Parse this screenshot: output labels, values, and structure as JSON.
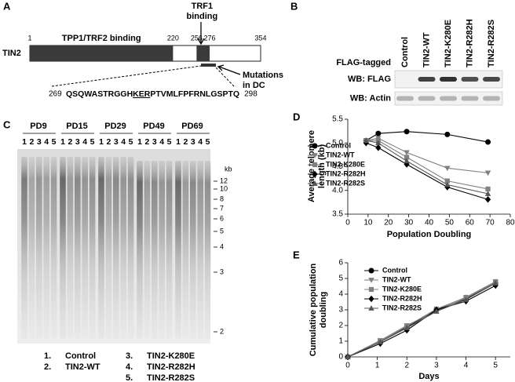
{
  "panel_labels": [
    "A",
    "B",
    "C",
    "D",
    "E"
  ],
  "diagram": {
    "protein": "TIN2",
    "positions": [
      1,
      220,
      256,
      276,
      354
    ],
    "tpp1_label": "TPP1/TRF2 binding",
    "trf1_label": [
      "TRF1",
      "binding"
    ],
    "mutation_label": [
      "Mutations",
      "in DC"
    ],
    "sequence": {
      "start": 269,
      "parts": [
        "QSQWASTRGGH",
        "KER",
        "PTVMLFPFRNLGSPTQ"
      ],
      "end": 298
    }
  },
  "blot": {
    "lanes": [
      "Control",
      "TIN2-WT",
      "TIN2-K280E",
      "TIN2-R282H",
      "TIN2-R282S"
    ],
    "tag_label": "FLAG-tagged",
    "rows": [
      "WB: FLAG",
      "WB: Actin"
    ]
  },
  "gel": {
    "groups": [
      "PD9",
      "PD15",
      "PD29",
      "PD49",
      "PD69"
    ],
    "lane_numbers": [
      1,
      2,
      3,
      4,
      5
    ],
    "size_unit": "kb",
    "size_markers": [
      12,
      10,
      8,
      7,
      6,
      5,
      4,
      3,
      2
    ],
    "key": [
      {
        "number": "1.",
        "label": "Control"
      },
      {
        "number": "2.",
        "label": "TIN2-WT"
      },
      {
        "number": "3.",
        "label": "TIN2-K280E"
      },
      {
        "number": "4.",
        "label": "TIN2-R282H"
      },
      {
        "number": "5.",
        "label": "TIN2-R282S"
      }
    ]
  },
  "chart_data": [
    {
      "type": "line",
      "xlabel": "Population Doubling",
      "ylabel": [
        "Average telomere",
        "length (kb)"
      ],
      "x": [
        9,
        15,
        29,
        49,
        69
      ],
      "xlim": [
        0,
        80
      ],
      "xticks": [
        0,
        10,
        20,
        30,
        40,
        50,
        60,
        70,
        80
      ],
      "ylim": [
        3.5,
        5.5
      ],
      "yticks": [
        3.5,
        {
          "value": 4,
          "label": "4.0"
        },
        4.5,
        {
          "value": 5,
          "label": "5.0"
        },
        5.5
      ],
      "series": [
        {
          "name": "Control",
          "color": "#000000",
          "marker": "circle",
          "values": [
            5.05,
            5.2,
            5.24,
            5.18,
            5.02
          ]
        },
        {
          "name": "TIN2-WT",
          "color": "#7f7f7f",
          "marker": "triangle-down",
          "values": [
            5.05,
            5.1,
            4.8,
            4.47,
            4.37
          ]
        },
        {
          "name": "TIN2-K280E",
          "color": "#808080",
          "marker": "square",
          "values": [
            5.05,
            5.05,
            4.7,
            4.2,
            4.03
          ]
        },
        {
          "name": "TIN2-R282H",
          "color": "#000000",
          "marker": "diamond",
          "values": [
            5.0,
            4.9,
            4.55,
            4.07,
            3.81
          ]
        },
        {
          "name": "TIN2-R282S",
          "color": "#555555",
          "marker": "triangle",
          "values": [
            5.05,
            5.0,
            4.62,
            4.12,
            3.93
          ]
        }
      ]
    },
    {
      "type": "line",
      "xlabel": "Days",
      "ylabel": [
        "Cumulative population",
        "doubling"
      ],
      "x": [
        0,
        1.1,
        2,
        3,
        4,
        5
      ],
      "xlim": [
        0,
        5.5
      ],
      "xticks": [
        0,
        1,
        2,
        3,
        4,
        5
      ],
      "ylim": [
        0,
        6
      ],
      "yticks": [
        0,
        1,
        2,
        3,
        4,
        5,
        6
      ],
      "series": [
        {
          "name": "Control",
          "color": "#000000",
          "marker": "circle",
          "values": [
            0,
            1.0,
            1.9,
            3.0,
            3.7,
            4.7
          ]
        },
        {
          "name": "TIN2-WT",
          "color": "#7f7f7f",
          "marker": "triangle-down",
          "values": [
            0,
            1.05,
            2.0,
            2.95,
            3.75,
            4.75
          ]
        },
        {
          "name": "TIN2-K280E",
          "color": "#808080",
          "marker": "square",
          "values": [
            0,
            1.0,
            1.95,
            3.05,
            3.8,
            4.8
          ]
        },
        {
          "name": "TIN2-R282H",
          "color": "#000000",
          "marker": "diamond",
          "values": [
            0,
            0.85,
            1.7,
            3.0,
            3.55,
            4.55
          ]
        },
        {
          "name": "TIN2-R282S",
          "color": "#555555",
          "marker": "triangle",
          "values": [
            0,
            0.95,
            1.85,
            2.9,
            3.65,
            4.7
          ]
        }
      ]
    }
  ]
}
